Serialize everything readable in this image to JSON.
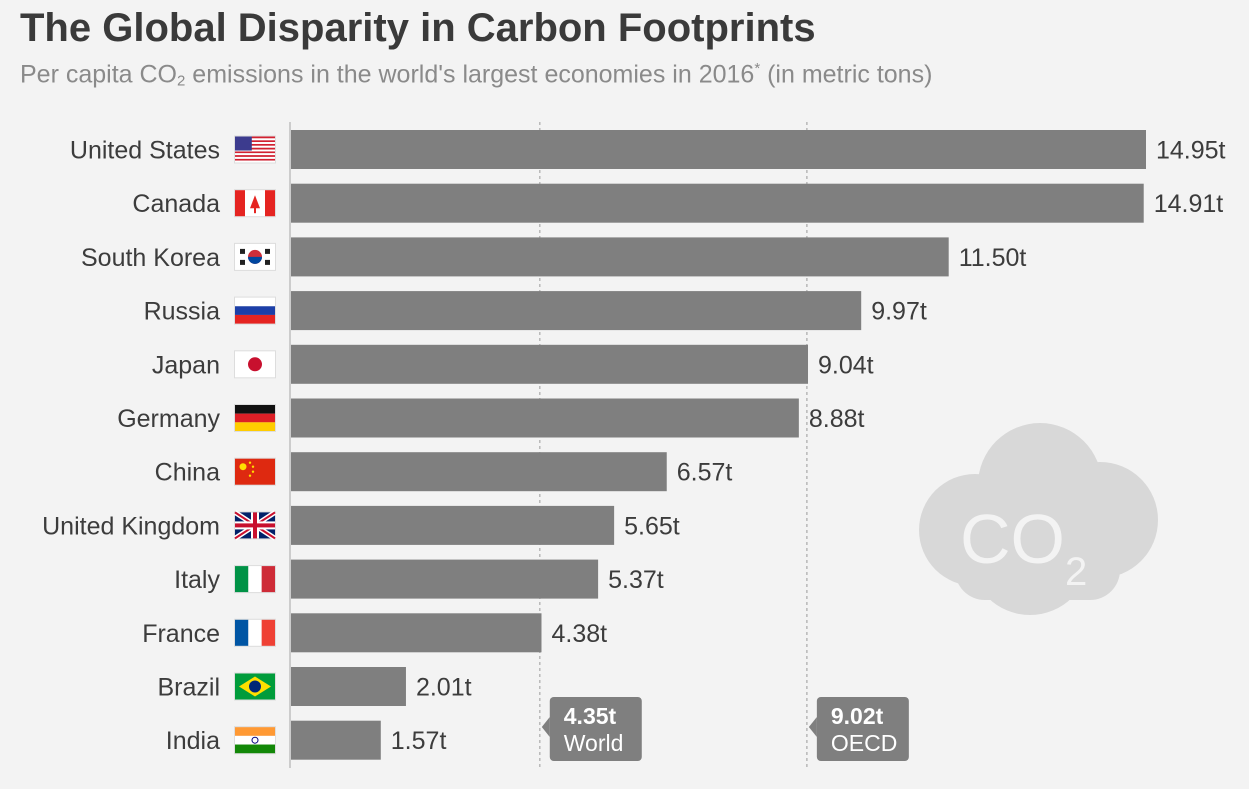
{
  "title": "The Global Disparity in Carbon Footprints",
  "subtitle": {
    "before": "Per capita CO",
    "sub": "2",
    "middle": " emissions in the world's largest economies in 2016",
    "sup": "*",
    "after": " (in metric tons)"
  },
  "colors": {
    "bar": "#7f7f7f",
    "background": "#f3f3f3",
    "cloud": "#d8d8d8",
    "ref_label_bg": "#7f7f7f"
  },
  "co2_cloud": {
    "text": "CO",
    "sub": "2"
  },
  "chart_data": {
    "type": "bar",
    "orientation": "horizontal",
    "categories": [
      "United States",
      "Canada",
      "South Korea",
      "Russia",
      "Japan",
      "Germany",
      "China",
      "United Kingdom",
      "Italy",
      "France",
      "Brazil",
      "India"
    ],
    "values": [
      14.95,
      14.91,
      11.5,
      9.97,
      9.04,
      8.88,
      6.57,
      5.65,
      5.37,
      4.38,
      2.01,
      1.57
    ],
    "value_labels": [
      "14.95t",
      "14.91t",
      "11.50t",
      "9.97t",
      "9.04t",
      "8.88t",
      "6.57t",
      "5.65t",
      "5.37t",
      "4.38t",
      "2.01t",
      "1.57t"
    ],
    "flags": [
      "us-flag-icon",
      "canada-flag-icon",
      "south-korea-flag-icon",
      "russia-flag-icon",
      "japan-flag-icon",
      "germany-flag-icon",
      "china-flag-icon",
      "united-kingdom-flag-icon",
      "italy-flag-icon",
      "france-flag-icon",
      "brazil-flag-icon",
      "india-flag-icon"
    ],
    "reference_lines": [
      {
        "value": 4.35,
        "value_label": "4.35t",
        "name": "World"
      },
      {
        "value": 9.02,
        "value_label": "9.02t",
        "name": "OECD"
      }
    ],
    "xlim": [
      0,
      15
    ]
  }
}
